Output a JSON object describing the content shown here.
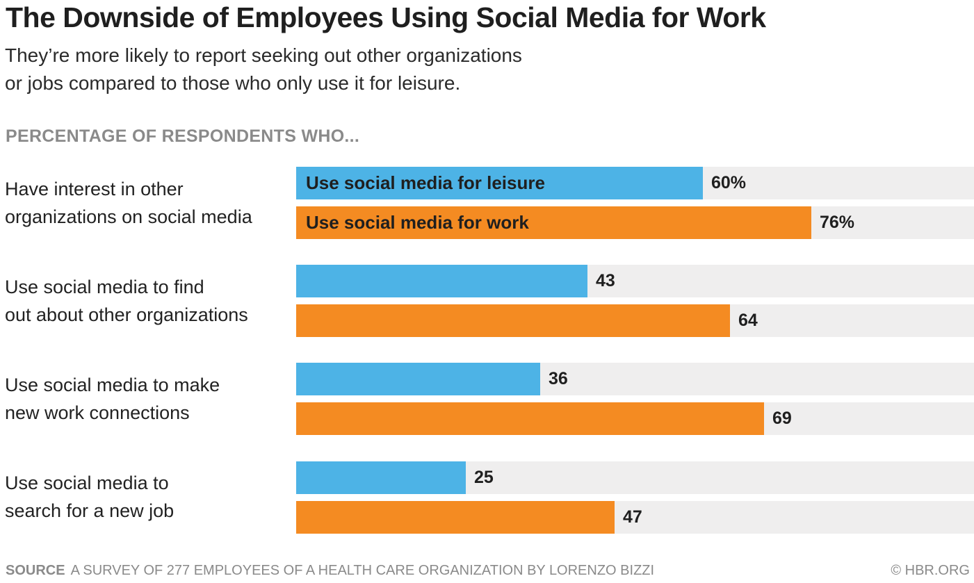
{
  "chart_data": {
    "type": "bar",
    "orientation": "horizontal",
    "title": "The Downside of Employees Using Social Media for Work",
    "subtitle_lines": [
      "They’re more likely to report seeking out other organizations",
      "or jobs compared to those who only use it for leisure."
    ],
    "kicker": "PERCENTAGE OF RESPONDENTS WHO...",
    "xlim": [
      0,
      100
    ],
    "categories": [
      {
        "lines": [
          "Have interest in other",
          "organizations on social media"
        ]
      },
      {
        "lines": [
          "Use social media to find",
          "out about other organizations"
        ]
      },
      {
        "lines": [
          "Use social media to make",
          "new work connections"
        ]
      },
      {
        "lines": [
          "Use social media to",
          "search for a new job"
        ]
      }
    ],
    "series": [
      {
        "name": "Use social media for leisure",
        "color": "#4db3e6",
        "values": [
          60,
          43,
          36,
          25
        ]
      },
      {
        "name": "Use social media for work",
        "color": "#f48b22",
        "values": [
          76,
          64,
          69,
          47
        ]
      }
    ],
    "value_labels": [
      [
        "60%",
        "76%"
      ],
      [
        "43",
        "64"
      ],
      [
        "36",
        "69"
      ],
      [
        "25",
        "47"
      ]
    ],
    "source_label": "SOURCE",
    "source_text": "A SURVEY OF 277 EMPLOYEES OF A HEALTH CARE ORGANIZATION BY LORENZO BIZZI",
    "credit": "© HBR.ORG"
  }
}
